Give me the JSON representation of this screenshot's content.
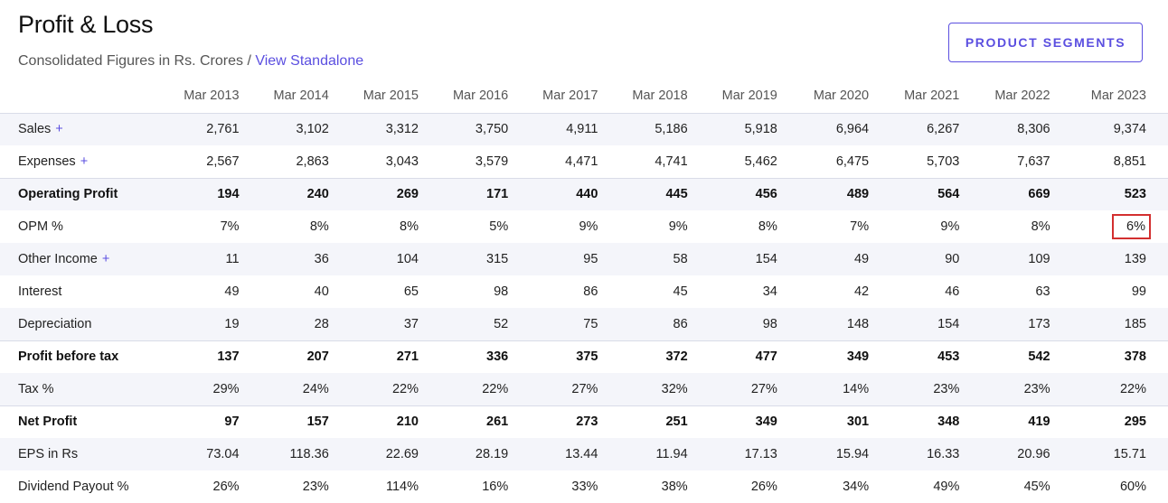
{
  "header": {
    "title": "Profit & Loss",
    "subtitle_text": "Consolidated Figures in Rs. Crores / ",
    "subtitle_link": "View Standalone",
    "segments_button": "PRODUCT SEGMENTS"
  },
  "table": {
    "columns": [
      "Mar 2013",
      "Mar 2014",
      "Mar 2015",
      "Mar 2016",
      "Mar 2017",
      "Mar 2018",
      "Mar 2019",
      "Mar 2020",
      "Mar 2021",
      "Mar 2022",
      "Mar 2023"
    ],
    "rows": [
      {
        "label": "Sales",
        "expandable": true,
        "bold": false,
        "stripe": true,
        "sep": false,
        "values": [
          "2,761",
          "3,102",
          "3,312",
          "3,750",
          "4,911",
          "5,186",
          "5,918",
          "6,964",
          "6,267",
          "8,306",
          "9,374"
        ]
      },
      {
        "label": "Expenses",
        "expandable": true,
        "bold": false,
        "stripe": false,
        "sep": false,
        "values": [
          "2,567",
          "2,863",
          "3,043",
          "3,579",
          "4,471",
          "4,741",
          "5,462",
          "6,475",
          "5,703",
          "7,637",
          "8,851"
        ]
      },
      {
        "label": "Operating Profit",
        "expandable": false,
        "bold": true,
        "stripe": true,
        "sep": true,
        "values": [
          "194",
          "240",
          "269",
          "171",
          "440",
          "445",
          "456",
          "489",
          "564",
          "669",
          "523"
        ]
      },
      {
        "label": "OPM %",
        "expandable": false,
        "bold": false,
        "stripe": false,
        "sep": false,
        "values": [
          "7%",
          "8%",
          "8%",
          "5%",
          "9%",
          "9%",
          "8%",
          "7%",
          "9%",
          "8%",
          "6%"
        ],
        "highlight_last": true
      },
      {
        "label": "Other Income",
        "expandable": true,
        "bold": false,
        "stripe": true,
        "sep": false,
        "values": [
          "11",
          "36",
          "104",
          "315",
          "95",
          "58",
          "154",
          "49",
          "90",
          "109",
          "139"
        ]
      },
      {
        "label": "Interest",
        "expandable": false,
        "bold": false,
        "stripe": false,
        "sep": false,
        "values": [
          "49",
          "40",
          "65",
          "98",
          "86",
          "45",
          "34",
          "42",
          "46",
          "63",
          "99"
        ]
      },
      {
        "label": "Depreciation",
        "expandable": false,
        "bold": false,
        "stripe": true,
        "sep": false,
        "values": [
          "19",
          "28",
          "37",
          "52",
          "75",
          "86",
          "98",
          "148",
          "154",
          "173",
          "185"
        ]
      },
      {
        "label": "Profit before tax",
        "expandable": false,
        "bold": true,
        "stripe": false,
        "sep": true,
        "values": [
          "137",
          "207",
          "271",
          "336",
          "375",
          "372",
          "477",
          "349",
          "453",
          "542",
          "378"
        ]
      },
      {
        "label": "Tax %",
        "expandable": false,
        "bold": false,
        "stripe": true,
        "sep": false,
        "values": [
          "29%",
          "24%",
          "22%",
          "22%",
          "27%",
          "32%",
          "27%",
          "14%",
          "23%",
          "23%",
          "22%"
        ]
      },
      {
        "label": "Net Profit",
        "expandable": false,
        "bold": true,
        "stripe": false,
        "sep": true,
        "values": [
          "97",
          "157",
          "210",
          "261",
          "273",
          "251",
          "349",
          "301",
          "348",
          "419",
          "295"
        ]
      },
      {
        "label": "EPS in Rs",
        "expandable": false,
        "bold": false,
        "stripe": true,
        "sep": false,
        "values": [
          "73.04",
          "118.36",
          "22.69",
          "28.19",
          "13.44",
          "11.94",
          "17.13",
          "15.94",
          "16.33",
          "20.96",
          "15.71"
        ]
      },
      {
        "label": "Dividend Payout %",
        "expandable": false,
        "bold": false,
        "stripe": false,
        "sep": false,
        "values": [
          "26%",
          "23%",
          "114%",
          "16%",
          "33%",
          "38%",
          "26%",
          "34%",
          "49%",
          "45%",
          "60%"
        ]
      }
    ]
  },
  "colors": {
    "accent": "#5b4fe0",
    "highlight_border": "#d32f2f",
    "stripe": "#f4f5fa"
  },
  "icons": {
    "expand": "plus-icon"
  }
}
